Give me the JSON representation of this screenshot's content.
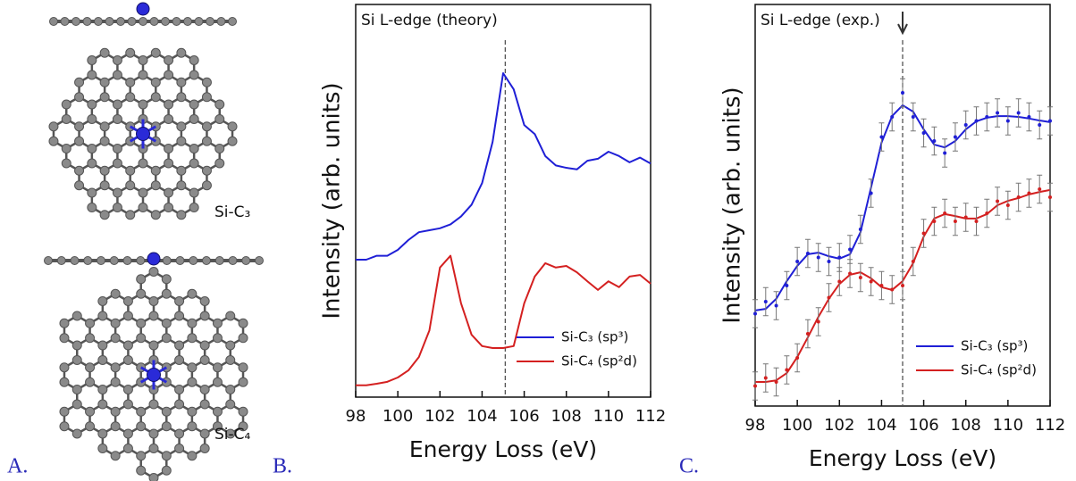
{
  "panel_labels": [
    "A.",
    "B.",
    "C."
  ],
  "structures": [
    {
      "label": "Si-C₃"
    },
    {
      "label": "Si-C₄"
    }
  ],
  "chart_data": [
    {
      "type": "line",
      "title": "Si L-edge (theory)",
      "x_label": "Energy Loss (eV)",
      "y_label": "Intensity (arb. units)",
      "x": [
        98,
        98.5,
        99,
        99.5,
        100,
        100.5,
        101,
        101.5,
        102,
        102.5,
        103,
        103.5,
        104,
        104.5,
        105,
        105.5,
        106,
        106.5,
        107,
        107.5,
        108,
        108.5,
        109,
        109.5,
        110,
        110.5,
        111,
        111.5,
        112
      ],
      "series": [
        {
          "name": "Si-C₃ (sp³)",
          "color": "#1f1fd6",
          "values": [
            35,
            35,
            36,
            36,
            37.5,
            40,
            42,
            42.5,
            43,
            44,
            46,
            49,
            54.5,
            65,
            82.5,
            78.4,
            69.3,
            67,
            61.4,
            59,
            58.4,
            58,
            60.2,
            60.7,
            62.5,
            61.4,
            59.8,
            61,
            59.5
          ]
        },
        {
          "name": "Si-C₄ (sp²d)",
          "color": "#d42020",
          "values": [
            3,
            3,
            3.4,
            3.9,
            5,
            6.8,
            10.2,
            17,
            33,
            36,
            23.9,
            15.9,
            13,
            12.5,
            12.5,
            13,
            23.9,
            30.7,
            34.1,
            33,
            33.4,
            31.8,
            29.5,
            27.3,
            29.5,
            28,
            30.7,
            31.1,
            28.9
          ]
        }
      ],
      "xlim": [
        98,
        112
      ],
      "ylim": [
        0,
        100
      ],
      "xticks": [
        98,
        100,
        102,
        104,
        106,
        108,
        110,
        112
      ],
      "vline": 105.1,
      "legend": "lower right"
    },
    {
      "type": "line",
      "title": "Si L-edge (exp.)",
      "x_label": "Energy Loss (eV)",
      "y_label": "Intensity (arb. units)",
      "x": [
        98,
        98.5,
        99,
        99.5,
        100,
        100.5,
        101,
        101.5,
        102,
        102.5,
        103,
        103.5,
        104,
        104.5,
        105,
        105.5,
        106,
        106.5,
        107,
        107.5,
        108,
        108.5,
        109,
        109.5,
        110,
        110.5,
        111,
        111.5,
        112
      ],
      "series": [
        {
          "name": "Si-C₃ (sp³)",
          "color": "#1f1fd6",
          "values": [
            23.8,
            24.2,
            26.7,
            31.1,
            34.9,
            37.8,
            38.2,
            37.3,
            36.7,
            37.8,
            43.3,
            54.4,
            65.6,
            72.2,
            74.9,
            73.3,
            68.9,
            65.1,
            64.4,
            66,
            68.9,
            70.9,
            71.8,
            72.2,
            72.2,
            72,
            71.6,
            71.1,
            70.7
          ]
        },
        {
          "name": "Si-C₄ (sp²d)",
          "color": "#d42020",
          "values": [
            6,
            6,
            6.4,
            8.2,
            12.2,
            17.1,
            22.2,
            26.7,
            30.4,
            32.7,
            33.3,
            31.8,
            29.6,
            28.9,
            31.1,
            35.6,
            42.2,
            46.7,
            47.8,
            47.3,
            46.7,
            46.7,
            47.8,
            50,
            51.1,
            51.8,
            52.7,
            53.3,
            53.8
          ]
        },
        {
          "style": "points",
          "color": "#1f1fd6",
          "error": 3.5,
          "values": [
            23,
            26,
            25,
            30,
            36,
            38,
            37,
            36,
            37,
            39,
            44,
            53,
            67,
            72,
            78,
            72,
            68,
            66,
            63,
            67,
            70,
            71,
            72,
            73,
            71,
            73,
            72,
            70,
            71
          ]
        },
        {
          "style": "points",
          "color": "#d42020",
          "error": 3.5,
          "values": [
            5,
            7,
            6,
            9,
            12,
            18,
            21,
            27,
            31,
            33,
            32,
            31,
            30,
            29,
            30,
            36,
            43,
            46,
            48,
            46,
            47,
            46,
            48,
            51,
            50,
            52,
            53,
            54,
            52
          ]
        }
      ],
      "xlim": [
        98,
        112
      ],
      "ylim": [
        0,
        100
      ],
      "xticks": [
        98,
        100,
        102,
        104,
        106,
        108,
        110,
        112
      ],
      "vline": 105,
      "arrow_x": 105,
      "legend": "lower right"
    }
  ]
}
